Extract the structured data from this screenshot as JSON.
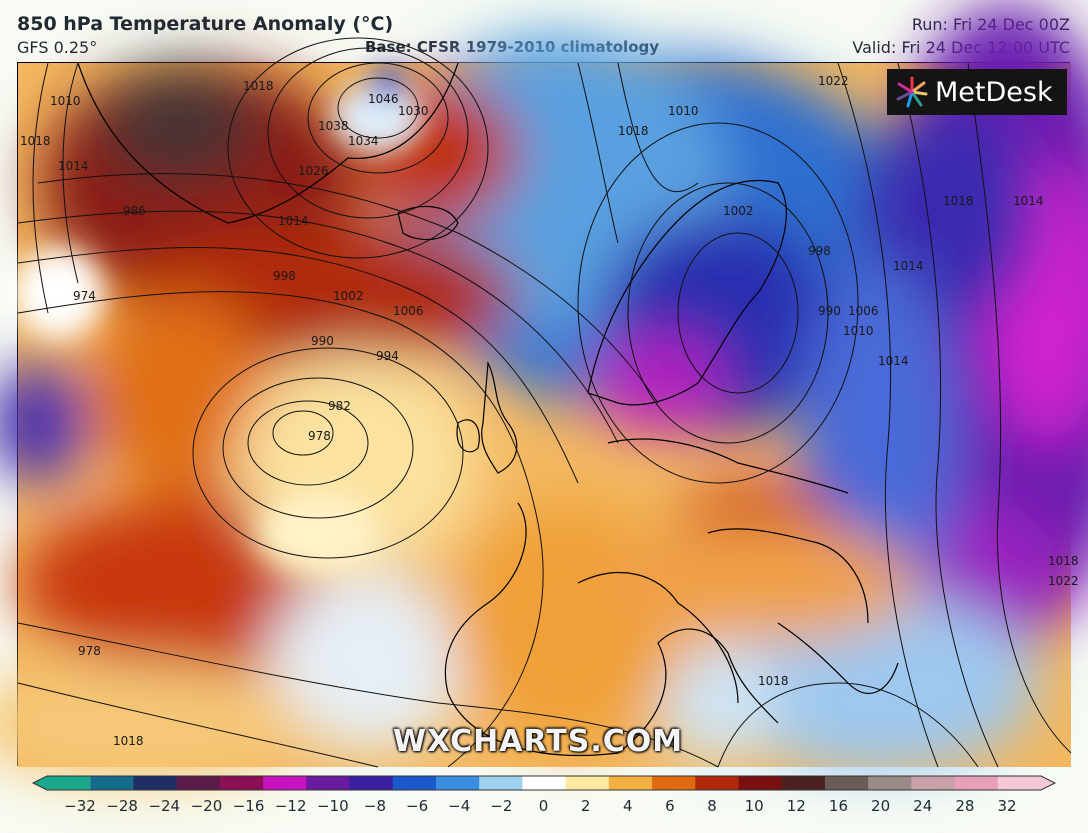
{
  "header": {
    "title": "850 hPa Temperature Anomaly (°C)",
    "model": "GFS 0.25°",
    "base": "Base: CFSR 1979-2010 climatology",
    "run": "Run: Fri 24 Dec 00Z",
    "valid": "Valid: Fri 24 Dec 12:00 UTC"
  },
  "logo": {
    "text": "MetDesk",
    "icon": "metdesk-burst-icon"
  },
  "watermark": "WXCHARTS.COM",
  "isobar_labels": [
    "1018",
    "1010",
    "1014",
    "1018",
    "1046",
    "1038",
    "1034",
    "1030",
    "1026",
    "1014",
    "986",
    "978",
    "974",
    "998",
    "1002",
    "1006",
    "990",
    "994",
    "982",
    "978",
    "1018",
    "1022",
    "1018",
    "1010",
    "1002",
    "998",
    "990",
    "1006",
    "1010",
    "1014",
    "1014",
    "1018",
    "1022",
    "1018",
    "1018",
    "1014"
  ],
  "colorbar": {
    "ticks": [
      "−32",
      "−28",
      "−24",
      "−20",
      "−16",
      "−12",
      "−10",
      "−8",
      "−6",
      "−4",
      "−2",
      "0",
      "2",
      "4",
      "6",
      "8",
      "10",
      "12",
      "16",
      "20",
      "24",
      "28",
      "32"
    ],
    "colors": [
      "#1aa88a",
      "#146b8c",
      "#1f2f66",
      "#5a1a4a",
      "#8a0f55",
      "#c812c0",
      "#6a1aa0",
      "#3a1fa0",
      "#1a5acc",
      "#3a8ee0",
      "#9ed0f0",
      "#ffffff",
      "#fde9a0",
      "#f2b040",
      "#e06a10",
      "#b02a0a",
      "#7a0f0f",
      "#4a2020",
      "#6a5a58",
      "#9a8a88",
      "#c8a0a8",
      "#e8a0b8",
      "#f5c8d8"
    ]
  }
}
